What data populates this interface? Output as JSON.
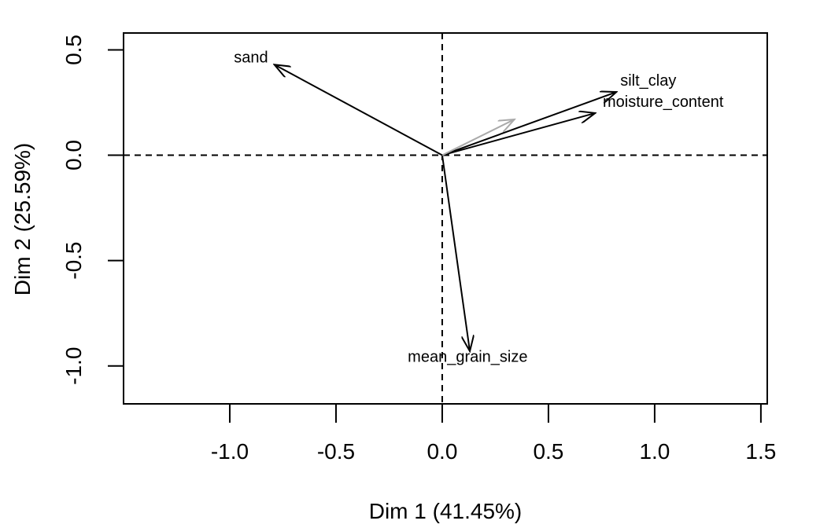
{
  "chart_data": {
    "type": "scatter",
    "title": "",
    "xlabel": "Dim 1 (41.45%)",
    "ylabel": "Dim 2 (25.59%)",
    "xlim": [
      -1.5,
      1.53
    ],
    "ylim": [
      -1.18,
      0.58
    ],
    "x_ticks": [
      -1.0,
      -0.5,
      0.0,
      0.5,
      1.0,
      1.5
    ],
    "x_tick_labels": [
      "-1.0",
      "-0.5",
      "0.0",
      "0.5",
      "1.0",
      "1.5"
    ],
    "y_ticks": [
      -1.0,
      -0.5,
      0.0,
      0.5
    ],
    "y_tick_labels": [
      "-1.0",
      "-0.5",
      "0.0",
      "0.5"
    ],
    "grid": false,
    "reference_lines": {
      "x": 0,
      "y": 0,
      "style": "dashed"
    },
    "vectors": [
      {
        "name": "sand",
        "x": -0.79,
        "y": 0.43,
        "color": "#000000",
        "label_x": -0.9,
        "label_y": 0.46
      },
      {
        "name": "silt_clay",
        "x": 0.82,
        "y": 0.3,
        "color": "#000000",
        "label_x": 0.97,
        "label_y": 0.35
      },
      {
        "name": "moisture_content",
        "x": 0.72,
        "y": 0.2,
        "color": "#000000",
        "label_x": 1.04,
        "label_y": 0.25
      },
      {
        "name": "mean_grain_size",
        "x": 0.13,
        "y": -0.93,
        "color": "#000000",
        "label_x": 0.12,
        "label_y": -0.96
      },
      {
        "name": "",
        "x": 0.34,
        "y": 0.17,
        "color": "#aaaaaa",
        "label_x": null,
        "label_y": null
      }
    ]
  }
}
